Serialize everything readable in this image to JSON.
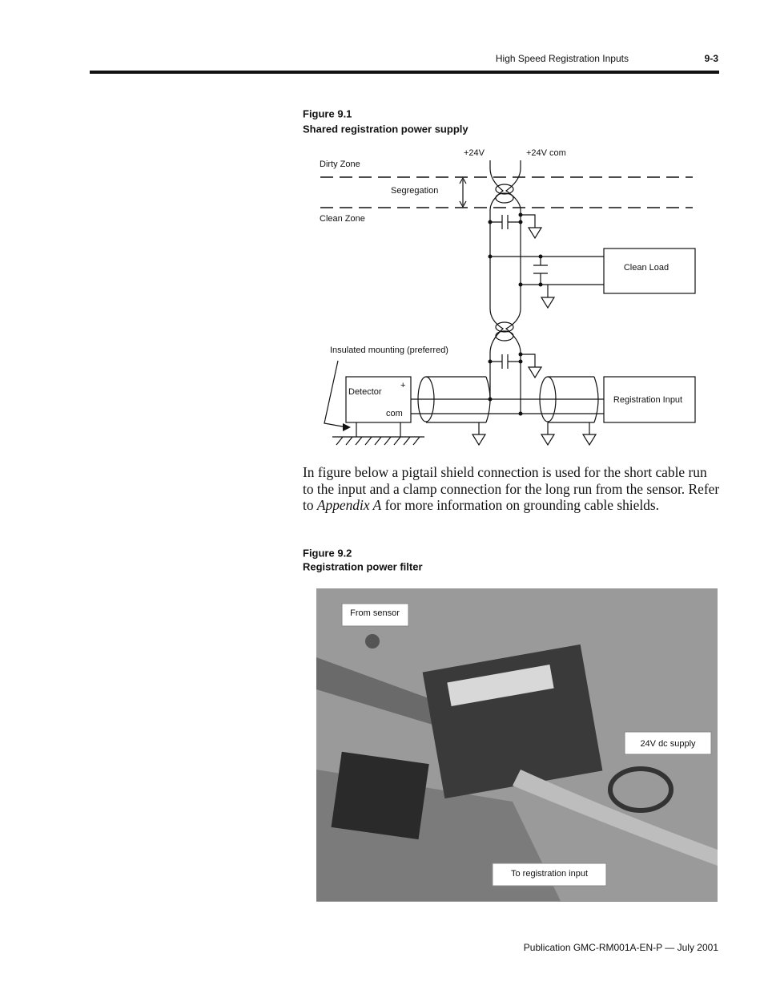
{
  "header": {
    "title": "High Speed Registration Inputs",
    "page": "9-3"
  },
  "figure1": {
    "number": "Figure 9.1",
    "caption": "Shared registration power supply",
    "labels": {
      "plus24v": "+24V",
      "com24v": "+24V com",
      "dirty_zone": "Dirty Zone",
      "segregation": "Segregation",
      "clean_zone": "Clean Zone",
      "clean_load": "Clean Load",
      "insulated": "Insulated mounting (preferred)",
      "detector": "Detector",
      "plus": "+",
      "com": "com",
      "registration_input": "Registration Input"
    }
  },
  "paragraph": {
    "before": "In figure below a pigtail shield connection is used for the short cable run to the input and a clamp connection for the long run from the sensor. Refer to ",
    "emphasis": "Appendix A",
    "after": " for more information on grounding cable shields."
  },
  "figure2": {
    "number": "Figure 9.2",
    "caption": "Registration power filter",
    "callouts": [
      "From sensor",
      "24V dc supply",
      "To registration input"
    ]
  },
  "footer": "Publication GMC-RM001A-EN-P — July 2001"
}
